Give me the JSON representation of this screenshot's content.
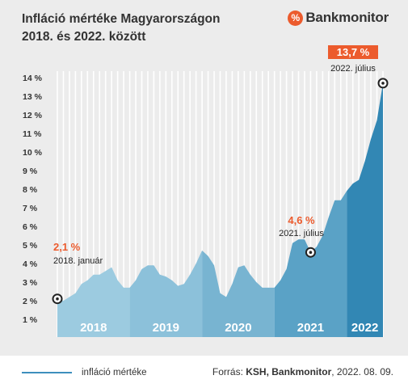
{
  "header": {
    "title_line1": "Infláció mértéke Magyarországon",
    "title_line2": "2018. és 2022. között",
    "logo_symbol": "%",
    "logo_text": "Bankmonitor"
  },
  "footer": {
    "legend_label": "infláció mértéke",
    "source_prefix": "Forrás: ",
    "source_names": "KSH, Bankmonitor",
    "source_date": ", 2022. 08. 09."
  },
  "colors": {
    "accent": "#ec5b2d",
    "fill_2018": "#9ccbe0",
    "fill_2019": "#8cc1da",
    "fill_2020": "#78b4d1",
    "fill_2021": "#5aa2c6",
    "fill_2022": "#3287b4",
    "grid": "#ffffff",
    "panel": "#ececec"
  },
  "chart_data": {
    "type": "area",
    "x": [
      "2018-01",
      "2018-02",
      "2018-03",
      "2018-04",
      "2018-05",
      "2018-06",
      "2018-07",
      "2018-08",
      "2018-09",
      "2018-10",
      "2018-11",
      "2018-12",
      "2019-01",
      "2019-02",
      "2019-03",
      "2019-04",
      "2019-05",
      "2019-06",
      "2019-07",
      "2019-08",
      "2019-09",
      "2019-10",
      "2019-11",
      "2019-12",
      "2020-01",
      "2020-02",
      "2020-03",
      "2020-04",
      "2020-05",
      "2020-06",
      "2020-07",
      "2020-08",
      "2020-09",
      "2020-10",
      "2020-11",
      "2020-12",
      "2021-01",
      "2021-02",
      "2021-03",
      "2021-04",
      "2021-05",
      "2021-06",
      "2021-07",
      "2021-08",
      "2021-09",
      "2021-10",
      "2021-11",
      "2021-12",
      "2022-01",
      "2022-02",
      "2022-03",
      "2022-04",
      "2022-05",
      "2022-06",
      "2022-07"
    ],
    "series": [
      {
        "name": "infláció mértéke",
        "values": [
          2.1,
          2.0,
          2.2,
          2.4,
          2.9,
          3.1,
          3.4,
          3.4,
          3.6,
          3.8,
          3.1,
          2.7,
          2.7,
          3.1,
          3.7,
          3.9,
          3.9,
          3.4,
          3.3,
          3.1,
          2.8,
          2.9,
          3.4,
          4.0,
          4.7,
          4.4,
          3.9,
          2.4,
          2.2,
          2.9,
          3.8,
          3.9,
          3.4,
          3.0,
          2.7,
          2.7,
          2.7,
          3.1,
          3.7,
          5.1,
          5.3,
          5.3,
          4.6,
          4.9,
          5.5,
          6.5,
          7.4,
          7.4,
          7.9,
          8.3,
          8.5,
          9.5,
          10.7,
          11.7,
          13.7
        ]
      }
    ],
    "year_labels": [
      "2018",
      "2019",
      "2020",
      "2021",
      "2022"
    ],
    "y_ticks": [
      "1 %",
      "2 %",
      "3 %",
      "4 %",
      "5 %",
      "6 %",
      "7 %",
      "8 %",
      "9 %",
      "10 %",
      "11 %",
      "12 %",
      "13 %",
      "14 %"
    ],
    "ylim": [
      0.5,
      14.1
    ],
    "grid": true,
    "annotations": [
      {
        "index": 0,
        "value_label": "2,1 %",
        "date_label": "2018. január"
      },
      {
        "index": 42,
        "value_label": "4,6 %",
        "date_label": "2021. július"
      },
      {
        "index": 54,
        "value_label": "13,7 %",
        "date_label": "2022. július"
      }
    ]
  }
}
